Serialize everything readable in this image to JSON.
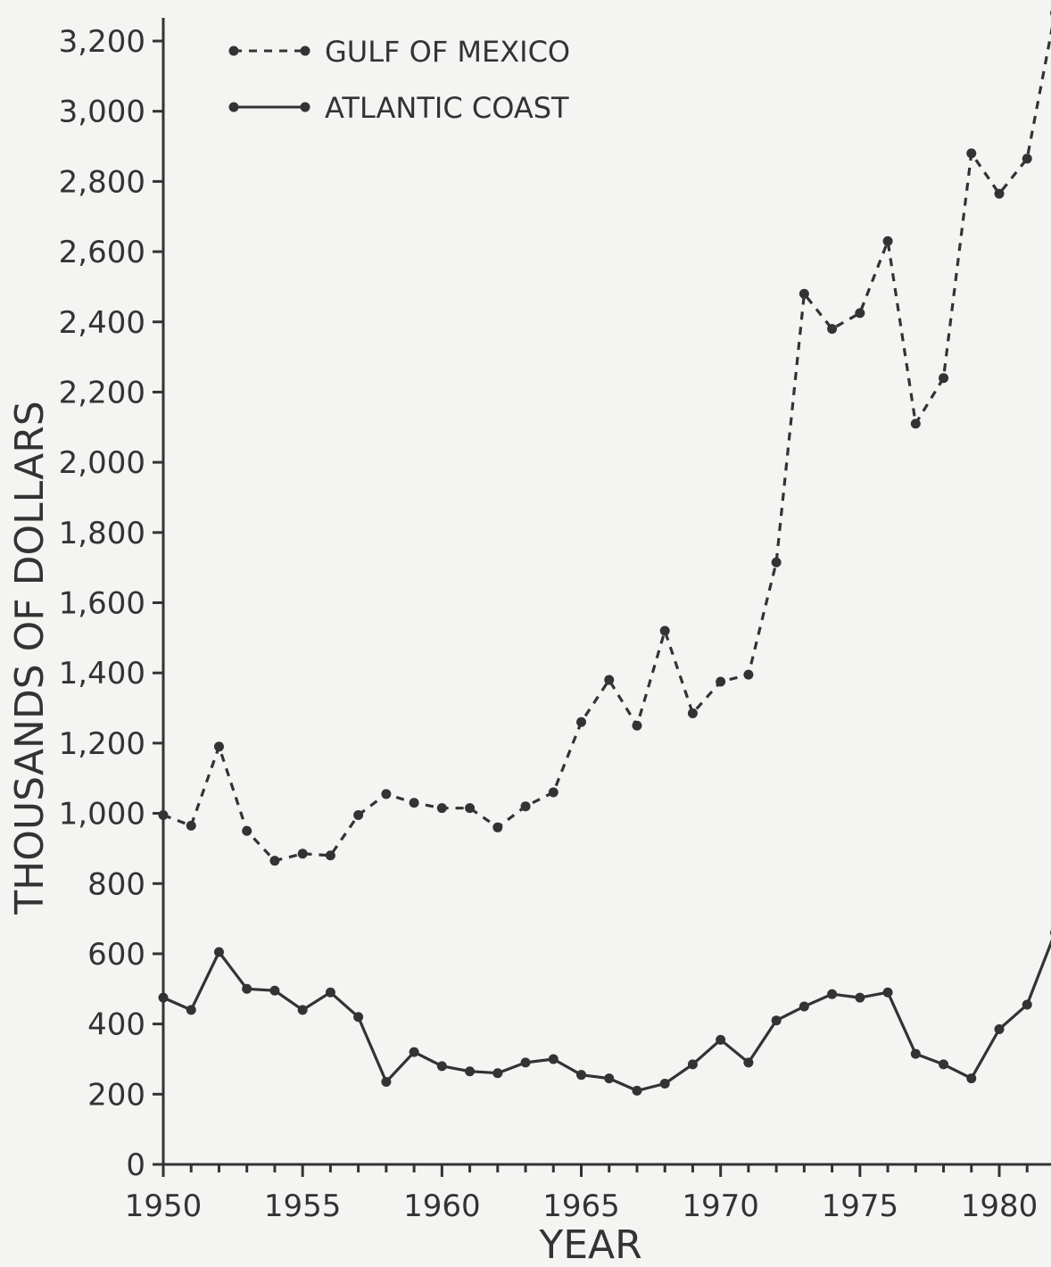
{
  "chart_data": {
    "type": "line",
    "xlabel": "YEAR",
    "ylabel": "THOUSANDS OF DOLLARS",
    "xlim": [
      1950,
      1982
    ],
    "ylim": [
      0,
      3200
    ],
    "xticks": [
      1950,
      1955,
      1960,
      1965,
      1970,
      1975,
      1980
    ],
    "xtick_labels": [
      "1950",
      "1955",
      "1960",
      "1965",
      "1970",
      "1975",
      "1980"
    ],
    "yticks": [
      0,
      200,
      400,
      600,
      800,
      1000,
      1200,
      1400,
      1600,
      1800,
      2000,
      2200,
      2400,
      2600,
      2800,
      3000,
      3200
    ],
    "ytick_labels": [
      "0",
      "200",
      "400",
      "600",
      "800",
      "1,000",
      "1,200",
      "1,400",
      "1,600",
      "1,800",
      "2,000",
      "2,200",
      "2,400",
      "2,600",
      "2,800",
      "3,000",
      "3,200"
    ],
    "legend_position": "top-left",
    "grid": false,
    "series": [
      {
        "name": "GULF OF MEXICO",
        "style": "dashed",
        "color": "#333333",
        "x": [
          1950,
          1951,
          1952,
          1953,
          1954,
          1955,
          1956,
          1957,
          1958,
          1959,
          1960,
          1961,
          1962,
          1963,
          1964,
          1965,
          1966,
          1967,
          1968,
          1969,
          1970,
          1971,
          1972,
          1973,
          1974,
          1975,
          1976,
          1977,
          1978,
          1979,
          1980,
          1981,
          1982
        ],
        "y": [
          995,
          965,
          1190,
          950,
          865,
          885,
          880,
          995,
          1055,
          1030,
          1015,
          1015,
          960,
          1020,
          1060,
          1260,
          1380,
          1250,
          1520,
          1285,
          1375,
          1395,
          1715,
          2480,
          2380,
          2425,
          2630,
          2110,
          2240,
          2880,
          2765,
          2865,
          3280
        ]
      },
      {
        "name": "ATLANTIC COAST",
        "style": "solid",
        "color": "#333333",
        "x": [
          1950,
          1951,
          1952,
          1953,
          1954,
          1955,
          1956,
          1957,
          1958,
          1959,
          1960,
          1961,
          1962,
          1963,
          1964,
          1965,
          1966,
          1967,
          1968,
          1969,
          1970,
          1971,
          1972,
          1973,
          1974,
          1975,
          1976,
          1977,
          1978,
          1979,
          1980,
          1981,
          1982
        ],
        "y": [
          475,
          440,
          605,
          500,
          495,
          440,
          490,
          420,
          235,
          320,
          280,
          265,
          260,
          290,
          300,
          255,
          245,
          210,
          230,
          285,
          355,
          290,
          410,
          450,
          485,
          475,
          490,
          315,
          285,
          245,
          385,
          455,
          660
        ]
      }
    ]
  }
}
